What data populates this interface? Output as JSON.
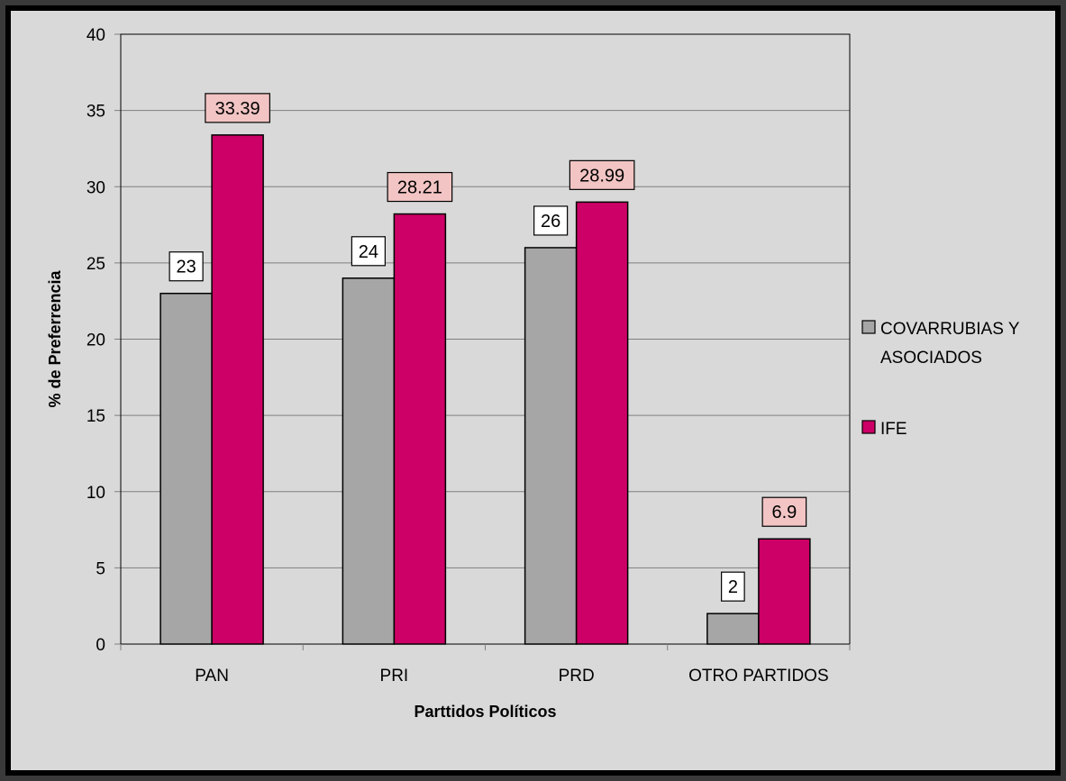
{
  "chart_data": {
    "type": "bar",
    "title": "",
    "xlabel": "Parttidos Políticos",
    "ylabel": "% de Preferrencia",
    "categories": [
      "PAN",
      "PRI",
      "PRD",
      "OTRO PARTIDOS"
    ],
    "ylim": [
      0,
      40
    ],
    "yticks": [
      0,
      5,
      10,
      15,
      20,
      25,
      30,
      35,
      40
    ],
    "grid": true,
    "legend_position": "right",
    "series": [
      {
        "name": "COVARRUBIAS Y ASOCIADOS",
        "legend_lines": [
          "COVARRUBIAS Y",
          "ASOCIADOS"
        ],
        "color": "#a6a6a6",
        "label_fill": "#ffffff",
        "values": [
          23,
          24,
          26,
          2
        ],
        "labels": [
          "23",
          "24",
          "26",
          "2"
        ]
      },
      {
        "name": "IFE",
        "legend_lines": [
          "IFE"
        ],
        "color": "#cc0066",
        "label_fill": "#f2c4c4",
        "values": [
          33.39,
          28.21,
          28.99,
          6.9
        ],
        "labels": [
          "33.39",
          "28.21",
          "28.99",
          "6.9"
        ]
      }
    ]
  }
}
